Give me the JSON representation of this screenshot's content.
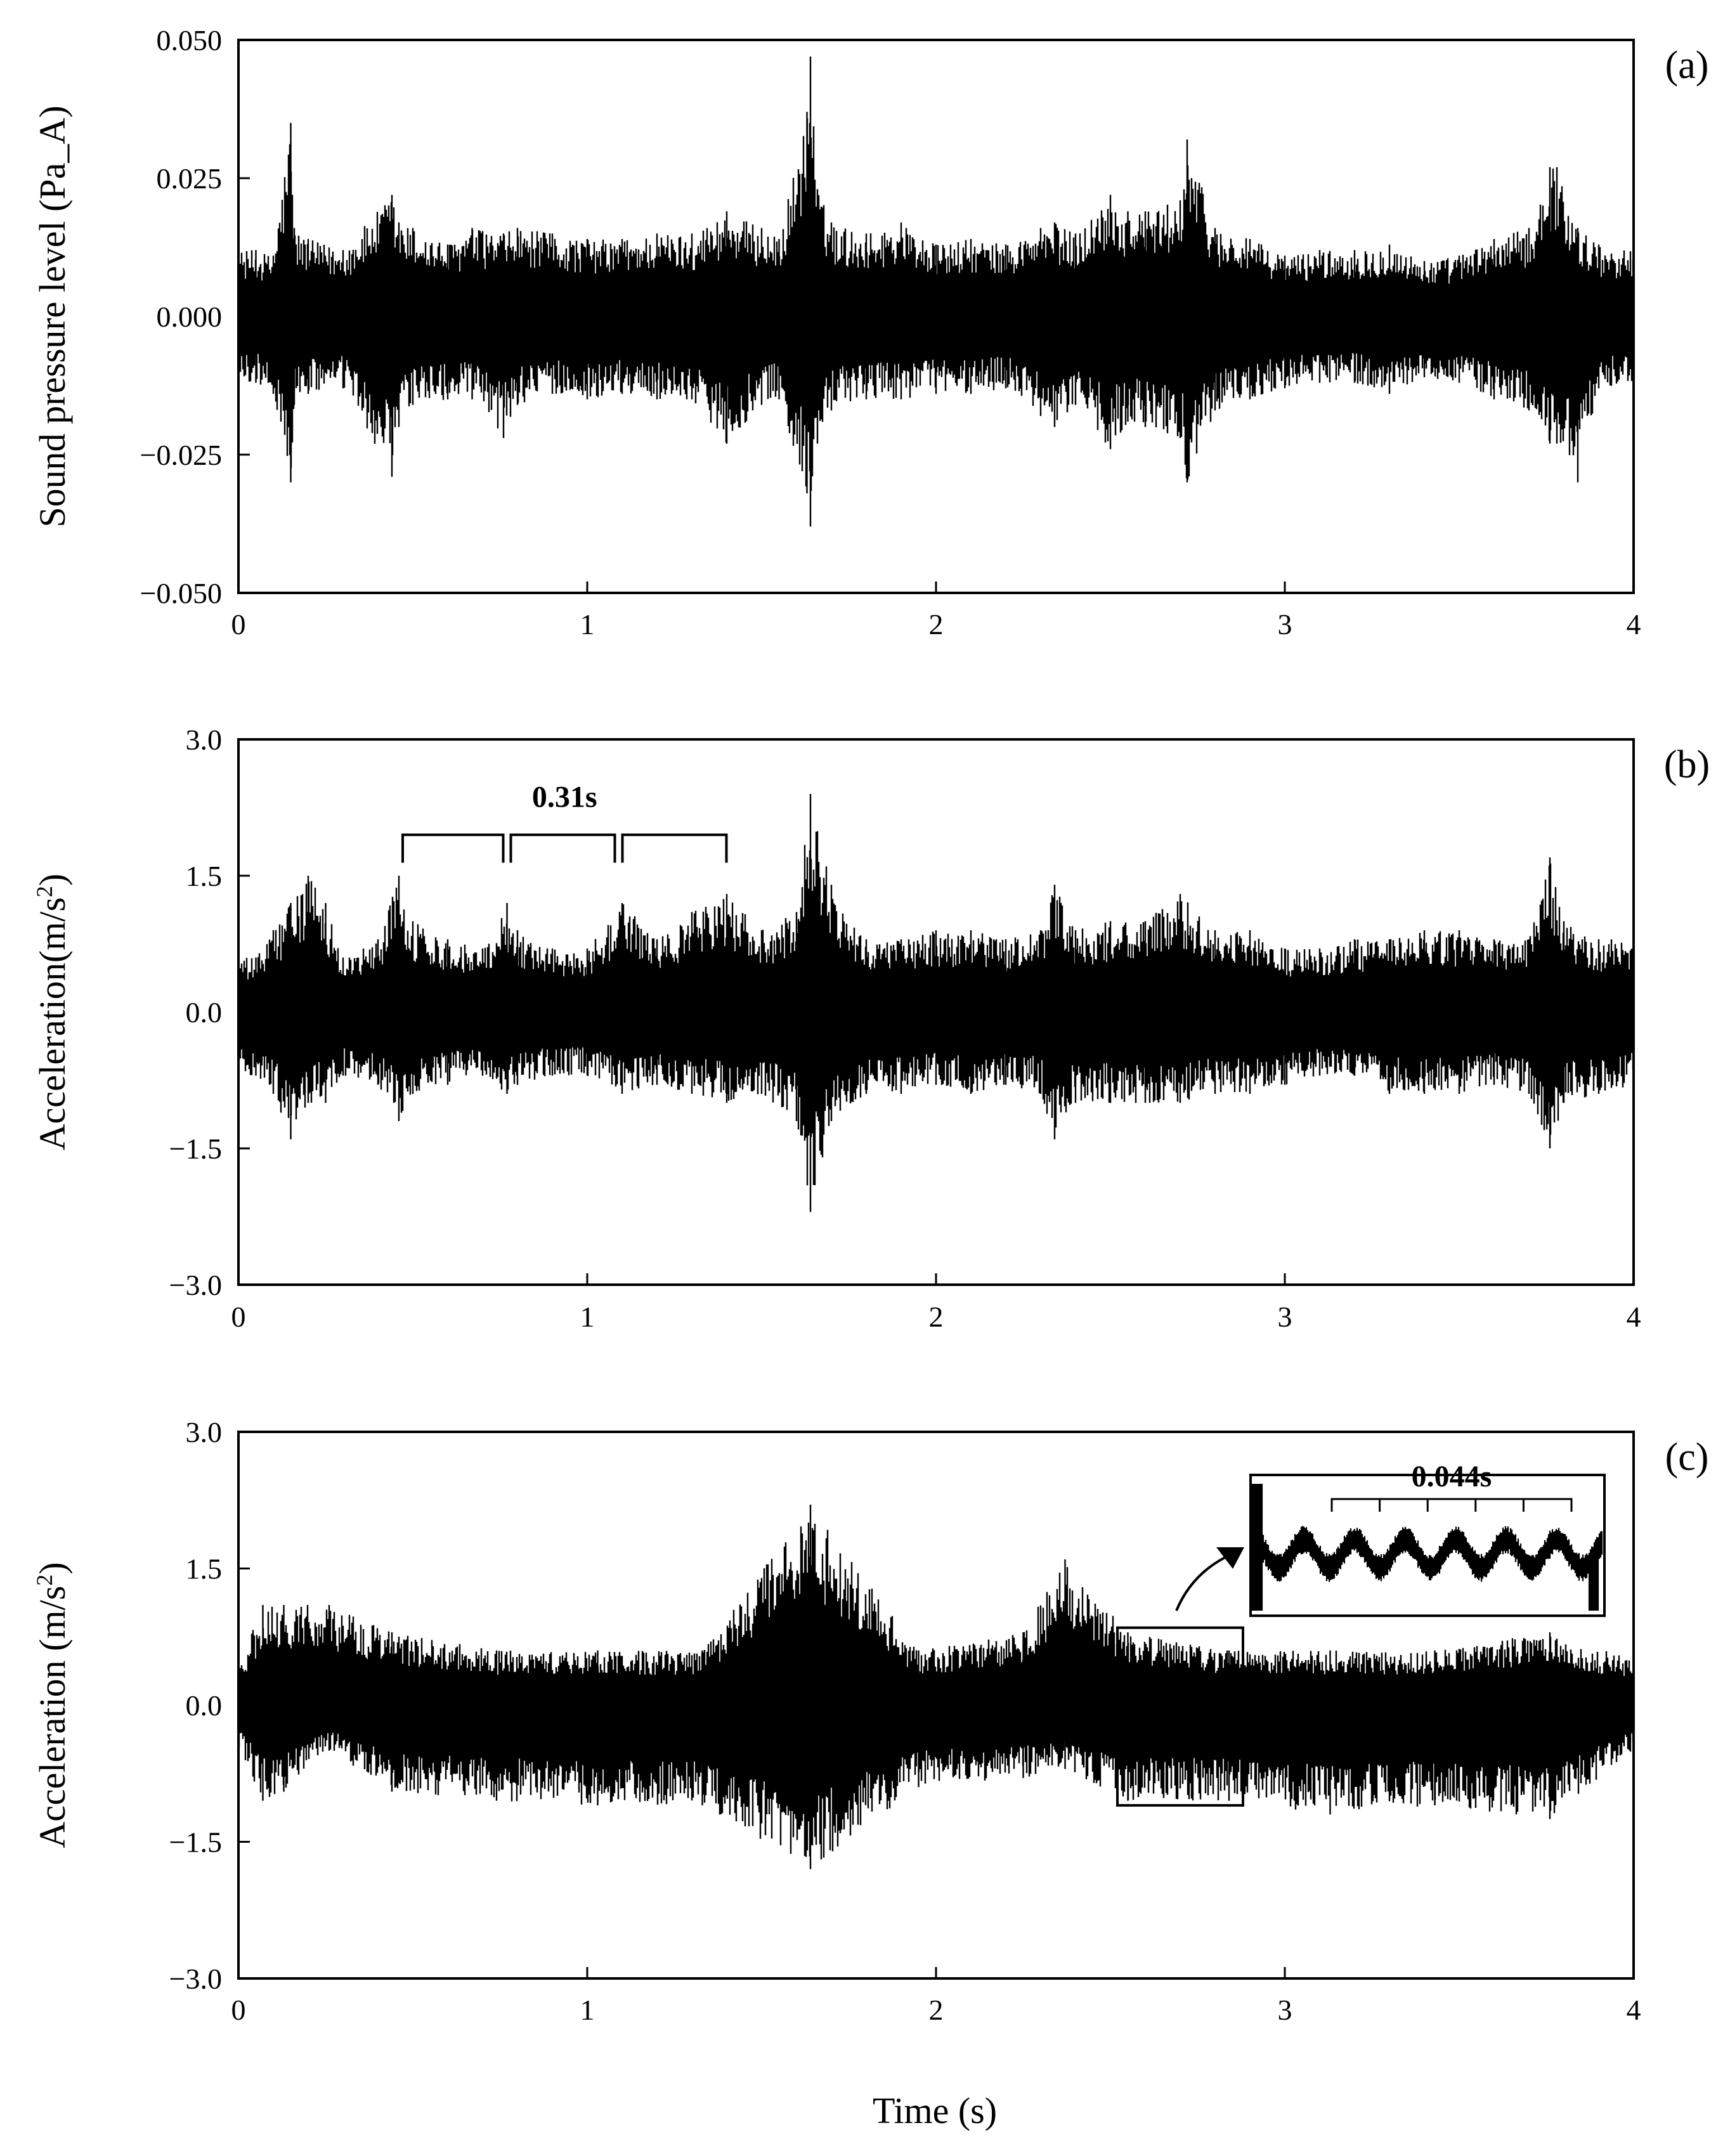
{
  "figure": {
    "xlabel": "Time (s)"
  },
  "chart_data": [
    {
      "type": "line",
      "panel_label": "(a)",
      "ylabel": "Sound pressure level (Pa_A)",
      "xlim": [
        0,
        4
      ],
      "ylim": [
        -0.05,
        0.05
      ],
      "xticks": [
        0,
        1,
        2,
        3,
        4
      ],
      "xtick_labels": [
        "0",
        "1",
        "2",
        "3",
        "4"
      ],
      "yticks": [
        0.05,
        0.025,
        0,
        -0.025,
        -0.05
      ],
      "ytick_labels": [
        "0.050",
        "0.025",
        "0.000",
        "−0.025",
        "−0.050"
      ],
      "grid": false,
      "color": "#000000",
      "series": [
        {
          "x": [
            0,
            0.05,
            0.1,
            0.15,
            0.16,
            0.2,
            0.3,
            0.44,
            0.46,
            0.5,
            0.6,
            0.67,
            0.76,
            0.8,
            0.9,
            1.0,
            1.1,
            1.2,
            1.3,
            1.4,
            1.5,
            1.55,
            1.63,
            1.64,
            1.66,
            1.7,
            1.8,
            1.9,
            2.0,
            2.1,
            2.2,
            2.3,
            2.34,
            2.4,
            2.5,
            2.55,
            2.6,
            2.7,
            2.72,
            2.8,
            2.9,
            3.0,
            3.1,
            3.2,
            3.3,
            3.4,
            3.5,
            3.6,
            3.7,
            3.76,
            3.78,
            3.84,
            3.9,
            4.0
          ],
          "upper": [
            0.012,
            0.012,
            0.011,
            0.035,
            0.016,
            0.014,
            0.012,
            0.022,
            0.017,
            0.016,
            0.013,
            0.016,
            0.015,
            0.016,
            0.015,
            0.014,
            0.014,
            0.015,
            0.015,
            0.019,
            0.016,
            0.014,
            0.037,
            0.047,
            0.023,
            0.017,
            0.015,
            0.017,
            0.013,
            0.014,
            0.013,
            0.016,
            0.017,
            0.015,
            0.022,
            0.019,
            0.019,
            0.021,
            0.032,
            0.016,
            0.014,
            0.011,
            0.012,
            0.012,
            0.013,
            0.01,
            0.011,
            0.014,
            0.016,
            0.027,
            0.027,
            0.016,
            0.013,
            0.012
          ],
          "lower": [
            -0.012,
            -0.012,
            -0.014,
            -0.03,
            -0.016,
            -0.014,
            -0.013,
            -0.029,
            -0.02,
            -0.016,
            -0.015,
            -0.015,
            -0.022,
            -0.016,
            -0.014,
            -0.015,
            -0.014,
            -0.015,
            -0.015,
            -0.023,
            -0.016,
            -0.015,
            -0.032,
            -0.038,
            -0.023,
            -0.017,
            -0.015,
            -0.015,
            -0.014,
            -0.014,
            -0.013,
            -0.018,
            -0.02,
            -0.016,
            -0.024,
            -0.019,
            -0.02,
            -0.022,
            -0.03,
            -0.017,
            -0.015,
            -0.013,
            -0.012,
            -0.012,
            -0.014,
            -0.011,
            -0.012,
            -0.015,
            -0.017,
            -0.023,
            -0.023,
            -0.03,
            -0.013,
            -0.012
          ]
        }
      ]
    },
    {
      "type": "line",
      "panel_label": "(b)",
      "ylabel": "Acceleration(m/s²)",
      "xlim": [
        0,
        4
      ],
      "ylim": [
        -3,
        3
      ],
      "xticks": [
        0,
        1,
        2,
        3,
        4
      ],
      "xtick_labels": [
        "0",
        "1",
        "2",
        "3",
        "4"
      ],
      "yticks": [
        3,
        1.5,
        0,
        -1.5,
        -3
      ],
      "ytick_labels": [
        "3.0",
        "1.5",
        "0.0",
        "−1.5",
        "−3.0"
      ],
      "grid": false,
      "color": "#000000",
      "series": [
        {
          "x": [
            0,
            0.05,
            0.1,
            0.15,
            0.2,
            0.25,
            0.3,
            0.4,
            0.46,
            0.5,
            0.6,
            0.7,
            0.77,
            0.8,
            0.9,
            1.0,
            1.1,
            1.2,
            1.3,
            1.4,
            1.5,
            1.6,
            1.64,
            1.7,
            1.8,
            1.9,
            2.0,
            2.1,
            2.2,
            2.3,
            2.34,
            2.4,
            2.5,
            2.6,
            2.7,
            2.8,
            2.9,
            3.0,
            3.1,
            3.2,
            3.3,
            3.4,
            3.5,
            3.6,
            3.7,
            3.76,
            3.8,
            3.9,
            4.0
          ],
          "upper": [
            0.6,
            0.6,
            0.9,
            1.2,
            1.5,
            1.2,
            0.6,
            0.8,
            1.5,
            1.0,
            0.8,
            0.7,
            1.2,
            0.9,
            0.7,
            0.7,
            1.2,
            0.8,
            1.1,
            1.3,
            0.9,
            1.1,
            2.4,
            1.4,
            0.8,
            0.8,
            0.9,
            0.9,
            0.8,
            0.9,
            1.4,
            0.9,
            1.0,
            1.0,
            1.3,
            0.9,
            0.9,
            0.7,
            0.7,
            0.8,
            0.8,
            0.9,
            0.9,
            0.8,
            0.8,
            1.7,
            1.0,
            0.8,
            0.8
          ],
          "lower": [
            -0.7,
            -0.7,
            -0.9,
            -1.4,
            -1.0,
            -1.0,
            -0.7,
            -0.8,
            -1.2,
            -0.9,
            -0.8,
            -0.7,
            -0.9,
            -0.8,
            -0.7,
            -0.7,
            -0.9,
            -0.8,
            -0.9,
            -1.0,
            -0.9,
            -1.2,
            -2.2,
            -1.2,
            -0.9,
            -0.9,
            -0.8,
            -0.9,
            -0.8,
            -0.9,
            -1.4,
            -1.0,
            -1.0,
            -1.0,
            -1.0,
            -0.9,
            -0.9,
            -0.8,
            -0.7,
            -0.7,
            -0.9,
            -0.9,
            -0.9,
            -0.8,
            -0.9,
            -1.5,
            -1.0,
            -0.9,
            -0.8
          ]
        }
      ],
      "annotation": {
        "label": "0.31s",
        "brackets": [
          [
            0.46,
            0.77
          ],
          [
            0.77,
            1.09
          ],
          [
            1.09,
            1.41
          ]
        ],
        "bracket_y": 1.95
      }
    },
    {
      "type": "line",
      "panel_label": "(c)",
      "ylabel": "Acceleration (m/s²)",
      "xlim": [
        0,
        4
      ],
      "ylim": [
        -3,
        3
      ],
      "xticks": [
        0,
        1,
        2,
        3,
        4
      ],
      "xtick_labels": [
        "0",
        "1",
        "2",
        "3",
        "4"
      ],
      "yticks": [
        3,
        1.5,
        0,
        -1.5,
        -3
      ],
      "ytick_labels": [
        "3.0",
        "1.5",
        "0.0",
        "−1.5",
        "−3.0"
      ],
      "grid": false,
      "color": "#000000",
      "series": [
        {
          "x": [
            0,
            0.07,
            0.13,
            0.26,
            0.44,
            0.74,
            1.03,
            1.33,
            1.64,
            1.95,
            2.25,
            2.37,
            2.55,
            2.84,
            3.13,
            3.43,
            3.76,
            4.0
          ],
          "upper": [
            0.45,
            1.1,
            1.1,
            1.1,
            0.8,
            0.6,
            0.6,
            0.6,
            2.2,
            0.6,
            0.8,
            1.6,
            0.8,
            0.6,
            0.6,
            0.6,
            0.8,
            0.5
          ],
          "lower": [
            -0.45,
            -1.05,
            -0.95,
            -0.5,
            -0.95,
            -1.05,
            -1.1,
            -1.1,
            -1.8,
            -0.9,
            -0.8,
            -0.7,
            -1.05,
            -1.05,
            -1.2,
            -1.1,
            -1.25,
            -0.5
          ]
        }
      ],
      "inset": {
        "label": "0.044s",
        "source_box": {
          "x": [
            2.52,
            2.88
          ],
          "y": [
            -1.1,
            0.85
          ]
        },
        "bracket_count": 5
      }
    }
  ]
}
